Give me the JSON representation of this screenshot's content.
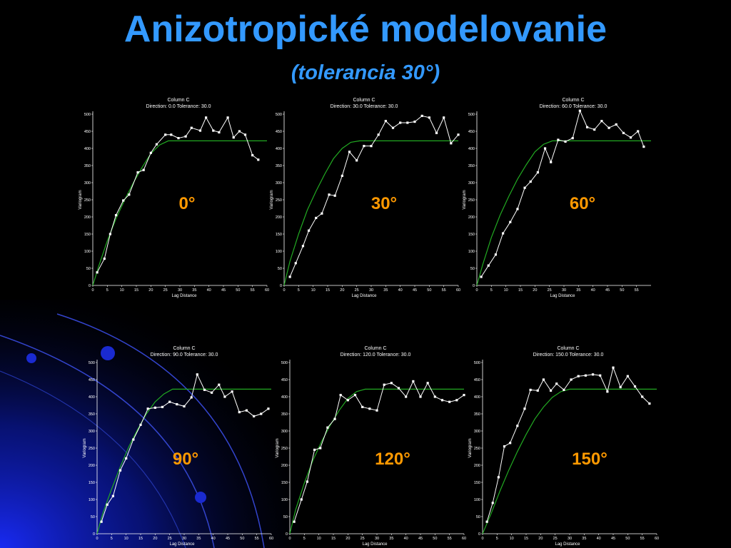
{
  "slide": {
    "title": "Anizotropické modelovanie",
    "subtitle": "(tolerancia 30°)"
  },
  "colors": {
    "title": "#3399ff",
    "angle_label": "#ff9900",
    "experimental": "#ffffff",
    "model": "#22aa22",
    "background": "#000000"
  },
  "chart_data": [
    {
      "type": "line",
      "header_line1": "Column C",
      "header_line2": "Direction:  0.0   Tolerance:  30.0",
      "angle_label": "0°",
      "xlabel": "Lag Distance",
      "ylabel": "Variogram",
      "xlim": [
        0,
        60
      ],
      "ylim": [
        0,
        500
      ],
      "x_ticks": [
        0,
        5,
        10,
        15,
        20,
        25,
        30,
        35,
        40,
        45,
        50,
        55,
        60
      ],
      "y_ticks": [
        0,
        50,
        100,
        150,
        200,
        250,
        300,
        350,
        400,
        450,
        500
      ],
      "series": [
        {
          "x": [
            1.5,
            4,
            6,
            8,
            10.5,
            12.5,
            15.5,
            17.5,
            20,
            22,
            25,
            27,
            29.5,
            32,
            34,
            37,
            39,
            41.5,
            43.5,
            46.5,
            48.5,
            50.5,
            52.5,
            55,
            57
          ],
          "y": [
            38,
            78,
            150,
            205,
            248,
            265,
            330,
            337,
            387,
            412,
            440,
            440,
            430,
            435,
            460,
            452,
            490,
            452,
            447,
            490,
            432,
            450,
            440,
            380,
            367
          ]
        }
      ],
      "model": {
        "x": [
          0,
          2,
          5,
          8,
          11,
          14,
          17,
          20,
          23,
          26,
          60
        ],
        "y": [
          0,
          55,
          130,
          195,
          250,
          300,
          345,
          385,
          410,
          422,
          422
        ]
      }
    },
    {
      "type": "line",
      "header_line1": "Column C",
      "header_line2": "Direction:  30.0    Tolerance:   30.0",
      "angle_label": "30°",
      "xlabel": "Lag Distance",
      "ylabel": "Variogram",
      "xlim": [
        0,
        60
      ],
      "ylim": [
        0,
        500
      ],
      "x_ticks": [
        0,
        5,
        10,
        15,
        20,
        25,
        30,
        35,
        40,
        45,
        50,
        55,
        60
      ],
      "y_ticks": [
        0,
        50,
        100,
        150,
        200,
        250,
        300,
        350,
        400,
        450,
        500
      ],
      "series": [
        {
          "x": [
            2,
            4,
            6.5,
            8.5,
            11,
            13,
            15.5,
            17.5,
            20,
            22.5,
            25,
            27.5,
            30,
            32.5,
            35,
            37.5,
            40,
            42.5,
            45,
            47.5,
            50,
            52.5,
            55,
            57.5,
            60
          ],
          "y": [
            25,
            65,
            115,
            160,
            197,
            210,
            265,
            262,
            320,
            390,
            365,
            407,
            407,
            440,
            480,
            460,
            475,
            475,
            478,
            495,
            490,
            445,
            490,
            415,
            440
          ]
        }
      ],
      "model": {
        "x": [
          0,
          2,
          5,
          8,
          11,
          14,
          17,
          20,
          23,
          26,
          60
        ],
        "y": [
          0,
          70,
          150,
          220,
          275,
          325,
          370,
          400,
          418,
          422,
          422
        ]
      }
    },
    {
      "type": "line",
      "header_line1": "Column C",
      "header_line2": "Direction:   60.0     Tolerance:   30.0",
      "angle_label": "60°",
      "xlabel": "Lag Distance",
      "ylabel": "Variogram",
      "xlim": [
        0,
        60
      ],
      "ylim": [
        0,
        500
      ],
      "x_ticks": [
        0,
        5,
        10,
        15,
        20,
        25,
        30,
        35,
        40,
        45,
        50,
        55
      ],
      "y_ticks": [
        0,
        50,
        100,
        150,
        200,
        250,
        300,
        350,
        400,
        450,
        500
      ],
      "series": [
        {
          "x": [
            1.5,
            4,
            6.5,
            9,
            11.5,
            14,
            16.5,
            18.5,
            21,
            23.5,
            25.5,
            28,
            30.5,
            33,
            35.5,
            38,
            40.5,
            43,
            45.5,
            48,
            50.5,
            53,
            55.5,
            57.5
          ],
          "y": [
            25,
            58,
            90,
            152,
            185,
            223,
            285,
            303,
            330,
            400,
            360,
            425,
            420,
            430,
            510,
            462,
            455,
            480,
            460,
            470,
            445,
            432,
            450,
            405
          ]
        }
      ],
      "model": {
        "x": [
          0,
          2,
          5,
          8,
          11,
          14,
          17,
          20,
          23,
          26,
          60
        ],
        "y": [
          0,
          60,
          140,
          205,
          260,
          310,
          352,
          390,
          412,
          422,
          422
        ]
      }
    },
    {
      "type": "line",
      "header_line1": "Column C",
      "header_line2": "Direction:   90.0     Tolerance:   30.0",
      "angle_label": "90°",
      "xlabel": "Lag Distance",
      "ylabel": "Variogram",
      "xlim": [
        0,
        60
      ],
      "ylim": [
        0,
        500
      ],
      "x_ticks": [
        0,
        5,
        10,
        15,
        20,
        25,
        30,
        35,
        40,
        45,
        50,
        55,
        60
      ],
      "y_ticks": [
        0,
        50,
        100,
        150,
        200,
        250,
        300,
        350,
        400,
        450,
        500
      ],
      "series": [
        {
          "x": [
            1.5,
            3.5,
            5.5,
            8,
            10,
            12.5,
            15,
            17.5,
            20,
            22.5,
            25,
            27.5,
            30,
            32.5,
            34.5,
            37,
            39.5,
            42,
            44,
            46.5,
            49,
            51.5,
            54,
            56.5,
            59
          ],
          "y": [
            35,
            85,
            110,
            185,
            220,
            275,
            318,
            365,
            368,
            370,
            385,
            378,
            372,
            398,
            465,
            420,
            412,
            435,
            400,
            415,
            355,
            360,
            343,
            350,
            365
          ]
        }
      ],
      "model": {
        "x": [
          0,
          2,
          5,
          8,
          11,
          14,
          17,
          20,
          23,
          26,
          60
        ],
        "y": [
          0,
          60,
          130,
          195,
          255,
          305,
          350,
          385,
          408,
          422,
          422
        ]
      }
    },
    {
      "type": "line",
      "header_line1": "Column C",
      "header_line2": "Direction: 120.0    Tolerance: 30.0",
      "angle_label": "120°",
      "xlabel": "Lag Distance",
      "ylabel": "Variogram",
      "xlim": [
        0,
        60
      ],
      "ylim": [
        0,
        500
      ],
      "x_ticks": [
        0,
        5,
        10,
        15,
        20,
        25,
        30,
        35,
        40,
        45,
        50,
        55,
        60
      ],
      "y_ticks": [
        0,
        50,
        100,
        150,
        200,
        250,
        300,
        350,
        400,
        450,
        500
      ],
      "series": [
        {
          "x": [
            1.5,
            4,
            6,
            8.5,
            10.5,
            13,
            15.5,
            17.5,
            20,
            22.5,
            25,
            27.5,
            30,
            32.5,
            35,
            37.5,
            40,
            42.5,
            45,
            47.5,
            50,
            52.5,
            55,
            57.5,
            60
          ],
          "y": [
            35,
            100,
            152,
            245,
            250,
            310,
            335,
            405,
            390,
            405,
            370,
            365,
            360,
            435,
            440,
            425,
            400,
            445,
            400,
            440,
            400,
            390,
            385,
            390,
            405
          ]
        }
      ],
      "model": {
        "x": [
          0,
          2,
          5,
          8,
          11,
          14,
          17,
          20,
          23,
          26,
          60
        ],
        "y": [
          0,
          70,
          148,
          215,
          270,
          318,
          360,
          395,
          415,
          422,
          422
        ]
      }
    },
    {
      "type": "line",
      "header_line1": "Column C",
      "header_line2": "Direction: 150.0    Tolerance: 30.0",
      "angle_label": "150°",
      "xlabel": "Lag Distance",
      "ylabel": "Variogram",
      "xlim": [
        0,
        60
      ],
      "ylim": [
        0,
        500
      ],
      "x_ticks": [
        0,
        5,
        10,
        15,
        20,
        25,
        30,
        35,
        40,
        45,
        50,
        55,
        60
      ],
      "y_ticks": [
        0,
        50,
        100,
        150,
        200,
        250,
        300,
        350,
        400,
        450,
        500
      ],
      "series": [
        {
          "x": [
            1.5,
            3.5,
            5.5,
            7.5,
            9.5,
            12,
            14.5,
            16.5,
            19,
            21,
            23.5,
            25.5,
            28,
            30.5,
            33,
            35.5,
            38,
            40.5,
            43,
            45,
            47.5,
            50,
            52.5,
            55,
            57.5
          ],
          "y": [
            35,
            90,
            165,
            255,
            265,
            315,
            365,
            420,
            418,
            450,
            418,
            438,
            420,
            450,
            460,
            462,
            465,
            462,
            415,
            485,
            428,
            460,
            430,
            400,
            380
          ]
        }
      ],
      "model": {
        "x": [
          0,
          3,
          6,
          9,
          12,
          15,
          18,
          21,
          24,
          27,
          30,
          60
        ],
        "y": [
          0,
          60,
          125,
          185,
          240,
          290,
          335,
          370,
          398,
          415,
          422,
          422
        ]
      }
    }
  ]
}
